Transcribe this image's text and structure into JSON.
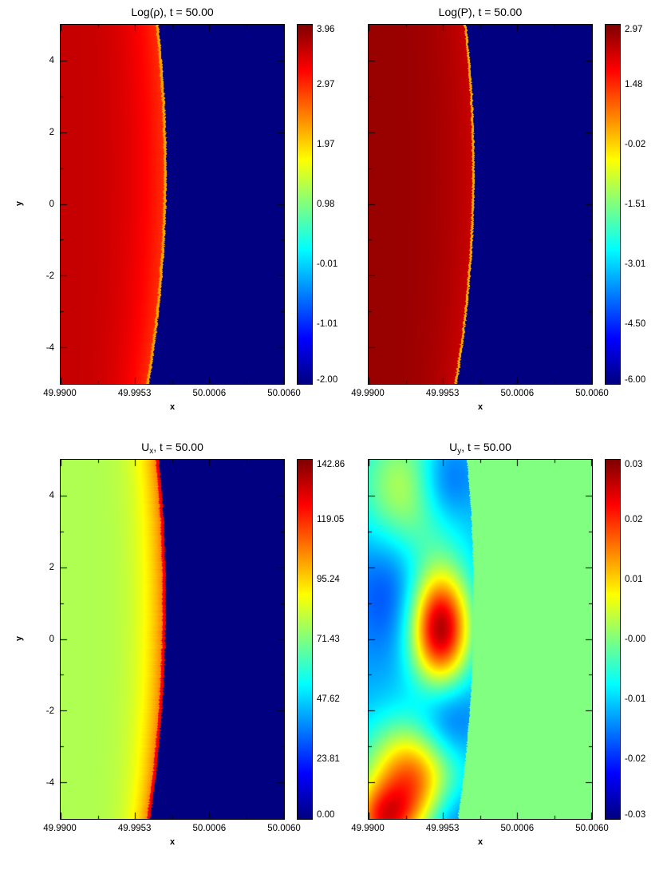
{
  "chart_data": {
    "type": "heatmap",
    "layout": "2x2 simulation snapshot maps",
    "colormap": "jet",
    "x": {
      "label": "x",
      "lim": [
        49.99,
        50.006
      ],
      "tick_labels": [
        "49.9900",
        "49.9953",
        "50.0006",
        "50.0060"
      ]
    },
    "y": {
      "label": "y",
      "lim": [
        -5,
        5
      ],
      "tick_values": [
        4,
        2,
        0,
        -2,
        -4
      ]
    },
    "panels": [
      {
        "id": "log-rho",
        "title_pre": "Log(ρ), t = 50.00",
        "title_sub": "",
        "title_post": "",
        "zmin": -2.0,
        "zmax": 3.96,
        "colorbar_ticks": [
          "3.96",
          "2.97",
          "1.97",
          "0.98",
          "-0.01",
          "-1.01",
          "-2.00"
        ],
        "field": {
          "kind": "shock",
          "left_far": 3.55,
          "left_near": 2.9,
          "ramp_power": 3,
          "edge_value": 2.25,
          "edge_width": 0.012,
          "right": -2.0,
          "front": [
            0.395,
            0.472,
            0.437
          ]
        }
      },
      {
        "id": "log-p",
        "title_pre": "Log(P), t = 50.00",
        "title_sub": "",
        "title_post": "",
        "zmin": -6.0,
        "zmax": 2.97,
        "colorbar_ticks": [
          "2.97",
          "1.48",
          "-0.02",
          "-1.51",
          "-3.01",
          "-4.50",
          "-6.00"
        ],
        "field": {
          "kind": "shock",
          "left_far": 2.75,
          "left_near": 2.3,
          "ramp_power": 3,
          "edge_value": 0.3,
          "edge_width": 0.01,
          "right": -6.0,
          "front": [
            0.395,
            0.472,
            0.437
          ]
        }
      },
      {
        "id": "ux",
        "title_pre": "U",
        "title_sub": "x",
        "title_post": ", t = 50.00",
        "zmin": 0.0,
        "zmax": 142.86,
        "colorbar_ticks": [
          "142.86",
          "119.05",
          "95.24",
          "71.43",
          "47.62",
          "23.81",
          "0.00"
        ],
        "field": {
          "kind": "shock",
          "left_far": 78,
          "left_near": 112,
          "ramp_power": 5,
          "edge_value": 126,
          "edge_width": 0.014,
          "right": 0,
          "front": [
            0.4,
            0.468,
            0.44
          ]
        }
      },
      {
        "id": "uy",
        "title_pre": "U",
        "title_sub": "y",
        "title_post": ", t = 50.00",
        "zmin": -0.03,
        "zmax": 0.03,
        "colorbar_ticks": [
          "0.03",
          "0.02",
          "0.01",
          "-0.00",
          "-0.01",
          "-0.02",
          "-0.03"
        ],
        "field": {
          "kind": "blobs",
          "base": -0.012,
          "right": 0.0,
          "front": [
            0.4,
            0.468,
            0.44
          ],
          "blobs": [
            {
              "cx": 0.18,
              "cy": 4.1,
              "sx": 0.16,
              "sy": 1.4,
              "amp": 0.018
            },
            {
              "cx": 0.33,
              "cy": 4.4,
              "sx": 0.1,
              "sy": 0.9,
              "amp": -0.012
            },
            {
              "cx": 0.1,
              "cy": 1.6,
              "sx": 0.13,
              "sy": 1.4,
              "amp": -0.008
            },
            {
              "cx": 0.32,
              "cy": 0.3,
              "sx": 0.095,
              "sy": 1.15,
              "amp": 0.04
            },
            {
              "cx": 0.34,
              "cy": -2.4,
              "sx": 0.1,
              "sy": 1.0,
              "amp": -0.01
            },
            {
              "cx": 0.2,
              "cy": -3.9,
              "sx": 0.15,
              "sy": 1.1,
              "amp": 0.03
            },
            {
              "cx": 0.36,
              "cy": -4.9,
              "sx": 0.09,
              "sy": 0.8,
              "amp": -0.009
            },
            {
              "cx": 0.06,
              "cy": -5.1,
              "sx": 0.1,
              "sy": 0.7,
              "amp": 0.024
            }
          ]
        }
      }
    ]
  }
}
